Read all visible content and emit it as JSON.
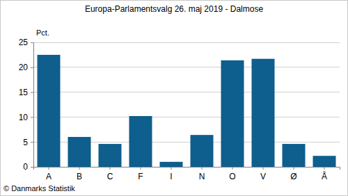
{
  "chart_data": {
    "type": "bar",
    "title": "Europa-Parlamentsvalg 26. maj 2019 - Dalmose",
    "y_label": "Pct.",
    "source": "© Danmarks Statistik",
    "categories": [
      "A",
      "B",
      "C",
      "F",
      "I",
      "N",
      "O",
      "V",
      "Ø",
      "Å"
    ],
    "values": [
      22.5,
      6.0,
      4.6,
      10.2,
      1.0,
      6.4,
      21.4,
      21.7,
      4.6,
      2.2
    ],
    "color": "#0e5e8e",
    "ylim": [
      0,
      25
    ],
    "yticks": [
      0,
      5,
      10,
      15,
      20,
      25
    ],
    "grid": true
  }
}
